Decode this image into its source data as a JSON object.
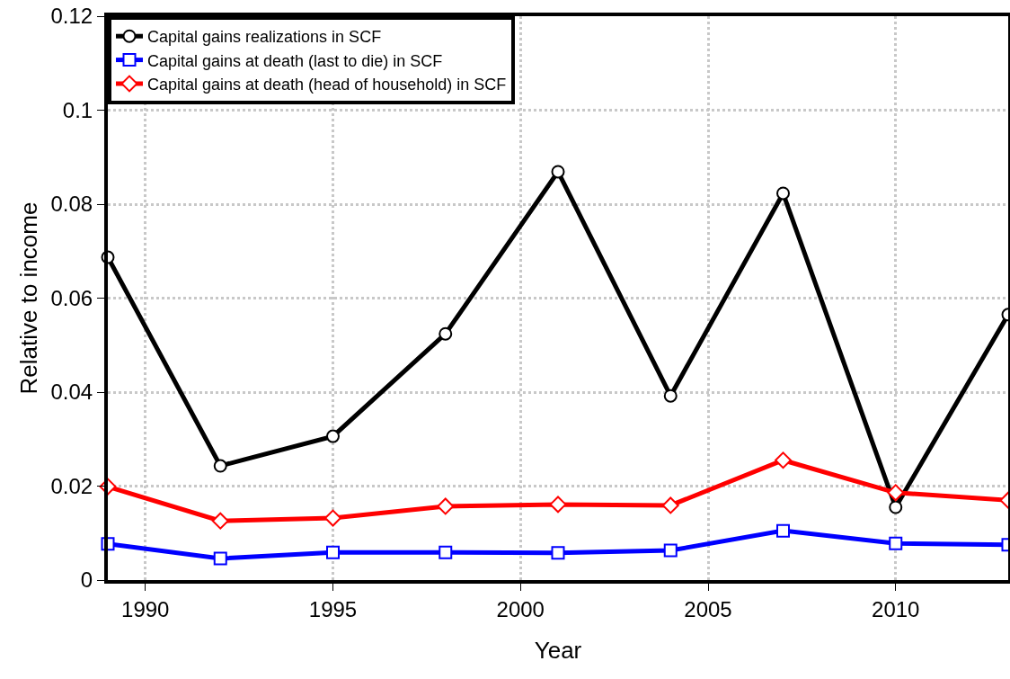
{
  "chart_data": {
    "type": "line",
    "xlabel": "Year",
    "ylabel": "Relative to income",
    "x": [
      1989,
      1992,
      1995,
      1998,
      2001,
      2004,
      2007,
      2010,
      2013
    ],
    "series": [
      {
        "name": "Capital gains realizations in SCF",
        "color": "#000000",
        "marker": "circle",
        "values": [
          0.0687,
          0.0243,
          0.0306,
          0.0524,
          0.0869,
          0.0392,
          0.0823,
          0.0155,
          0.0565
        ]
      },
      {
        "name": "Capital gains at death (last to die) in SCF",
        "color": "#0000ff",
        "marker": "square",
        "values": [
          0.0077,
          0.0046,
          0.0059,
          0.0059,
          0.0058,
          0.0063,
          0.0105,
          0.0078,
          0.0075
        ]
      },
      {
        "name": "Capital gains at death (head of household) in SCF",
        "color": "#ff0000",
        "marker": "diamond",
        "values": [
          0.0199,
          0.0126,
          0.0132,
          0.0157,
          0.0161,
          0.0159,
          0.0255,
          0.0186,
          0.017
        ]
      }
    ],
    "xlim": [
      1989,
      2013
    ],
    "xticks": [
      1990,
      1995,
      2000,
      2005,
      2010
    ],
    "ylim": [
      0,
      0.12
    ],
    "yticks": [
      0,
      0.02,
      0.04,
      0.06,
      0.08,
      0.1,
      0.12
    ],
    "grid": true,
    "legend": "top left",
    "line_style": "solid"
  }
}
